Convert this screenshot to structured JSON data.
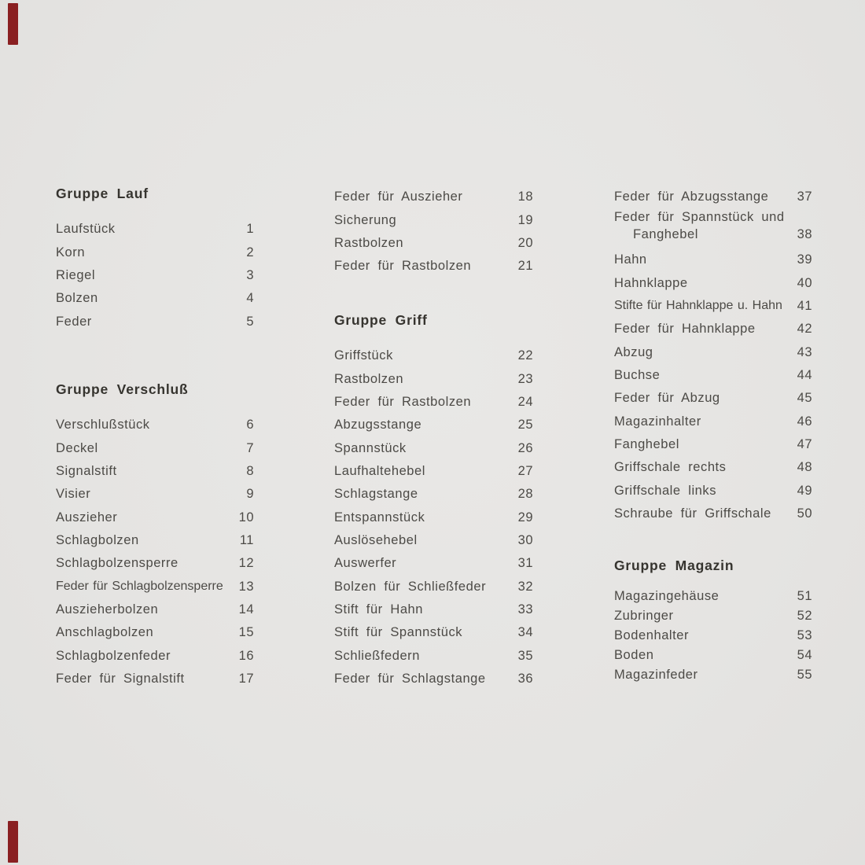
{
  "colors": {
    "background": "#e6e5e3",
    "item_text": "#4c4a46",
    "heading_text": "#36342f",
    "edge_marker": "#8a2022"
  },
  "edge_markers": {
    "top_visible": true,
    "bottom_visible": true
  },
  "columns": [
    {
      "sections": [
        {
          "heading": "Gruppe Lauf",
          "items": [
            {
              "label": "Laufstück",
              "num": "1"
            },
            {
              "label": "Korn",
              "num": "2"
            },
            {
              "label": "Riegel",
              "num": "3"
            },
            {
              "label": "Bolzen",
              "num": "4"
            },
            {
              "label": "Feder",
              "num": "5"
            }
          ]
        },
        {
          "heading": "Gruppe Verschluß",
          "items": [
            {
              "label": "Verschlußstück",
              "num": "6"
            },
            {
              "label": "Deckel",
              "num": "7"
            },
            {
              "label": "Signalstift",
              "num": "8"
            },
            {
              "label": "Visier",
              "num": "9"
            },
            {
              "label": "Auszieher",
              "num": "10"
            },
            {
              "label": "Schlagbolzen",
              "num": "11"
            },
            {
              "label": "Schlagbolzensperre",
              "num": "12"
            },
            {
              "label": "Feder für Schlagbolzensperre",
              "num": "13"
            },
            {
              "label": "Auszieherbolzen",
              "num": "14"
            },
            {
              "label": "Anschlagbolzen",
              "num": "15"
            },
            {
              "label": "Schlagbolzenfeder",
              "num": "16"
            },
            {
              "label": "Feder für Signalstift",
              "num": "17"
            }
          ]
        }
      ]
    },
    {
      "sections": [
        {
          "items": [
            {
              "label": "Feder für Auszieher",
              "num": "18"
            },
            {
              "label": "Sicherung",
              "num": "19"
            },
            {
              "label": "Rastbolzen",
              "num": "20"
            },
            {
              "label": "Feder für Rastbolzen",
              "num": "21"
            }
          ]
        },
        {
          "heading": "Gruppe Griff",
          "items": [
            {
              "label": "Griffstück",
              "num": "22"
            },
            {
              "label": "Rastbolzen",
              "num": "23"
            },
            {
              "label": "Feder für Rastbolzen",
              "num": "24"
            },
            {
              "label": "Abzugsstange",
              "num": "25"
            },
            {
              "label": "Spannstück",
              "num": "26"
            },
            {
              "label": "Laufhaltehebel",
              "num": "27"
            },
            {
              "label": "Schlagstange",
              "num": "28"
            },
            {
              "label": "Entspannstück",
              "num": "29"
            },
            {
              "label": "Auslösehebel",
              "num": "30"
            },
            {
              "label": "Auswerfer",
              "num": "31"
            },
            {
              "label": "Bolzen für Schließfeder",
              "num": "32"
            },
            {
              "label": "Stift für Hahn",
              "num": "33"
            },
            {
              "label": "Stift für Spannstück",
              "num": "34"
            },
            {
              "label": "Schließfedern",
              "num": "35"
            },
            {
              "label": "Feder für Schlagstange",
              "num": "36"
            }
          ]
        }
      ]
    },
    {
      "sections": [
        {
          "items": [
            {
              "label": "Feder für Abzugsstange",
              "num": "37"
            },
            {
              "label": "Feder für Spannstück und",
              "label2": "Fanghebel",
              "num": "38"
            },
            {
              "label": "Hahn",
              "num": "39"
            },
            {
              "label": "Hahnklappe",
              "num": "40"
            },
            {
              "label": "Stifte für Hahnklappe u. Hahn",
              "num": "41"
            },
            {
              "label": "Feder für Hahnklappe",
              "num": "42"
            },
            {
              "label": "Abzug",
              "num": "43"
            },
            {
              "label": "Buchse",
              "num": "44"
            },
            {
              "label": "Feder für Abzug",
              "num": "45"
            },
            {
              "label": "Magazinhalter",
              "num": "46"
            },
            {
              "label": "Fanghebel",
              "num": "47"
            },
            {
              "label": "Griffschale rechts",
              "num": "48"
            },
            {
              "label": "Griffschale links",
              "num": "49"
            },
            {
              "label": "Schraube für Griffschale",
              "num": "50"
            }
          ]
        },
        {
          "heading": "Gruppe Magazin",
          "items": [
            {
              "label": "Magazingehäuse",
              "num": "51"
            },
            {
              "label": "Zubringer",
              "num": "52"
            },
            {
              "label": "Bodenhalter",
              "num": "53"
            },
            {
              "label": "Boden",
              "num": "54"
            },
            {
              "label": "Magazinfeder",
              "num": "55"
            }
          ]
        }
      ]
    }
  ]
}
